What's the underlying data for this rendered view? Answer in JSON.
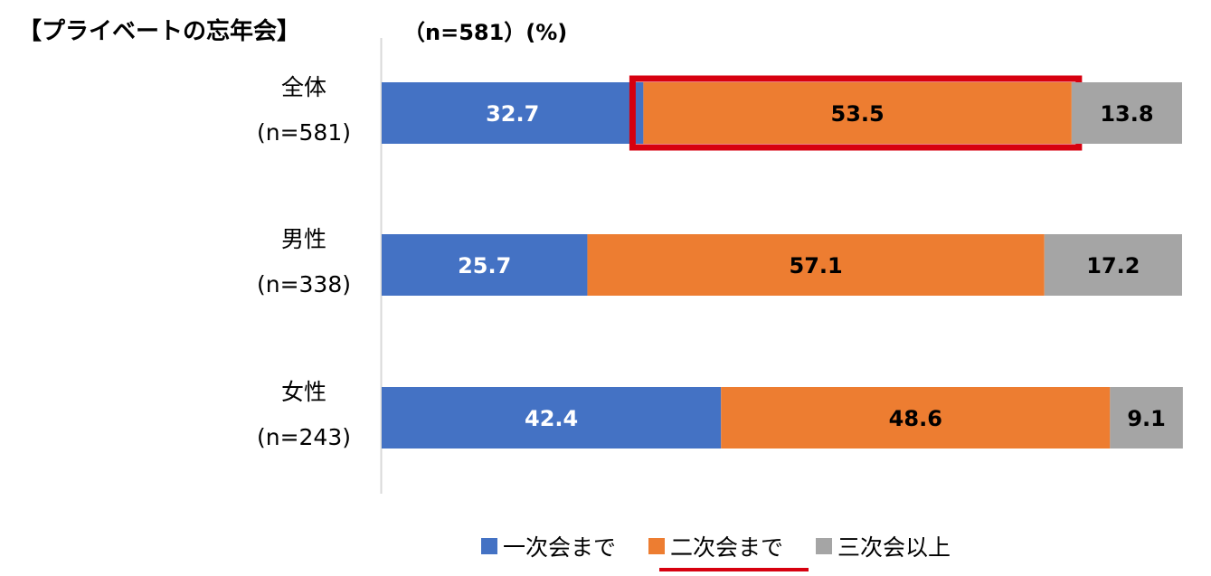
{
  "header": {
    "title": "【プライベートの忘年会】",
    "subtitle": "（n=581）(%)"
  },
  "chart_data": {
    "type": "bar",
    "orientation": "horizontal",
    "stacked": true,
    "categories": [
      {
        "label": "全体",
        "n_label": "(n=581)"
      },
      {
        "label": "男性",
        "n_label": "(n=338)"
      },
      {
        "label": "女性",
        "n_label": "(n=243)"
      }
    ],
    "series": [
      {
        "name": "一次会まで",
        "color": "#4472c4",
        "label_color": "#ffffff",
        "values": [
          32.7,
          25.7,
          42.4
        ]
      },
      {
        "name": "二次会まで",
        "color": "#ed7d31",
        "label_color": "#000000",
        "values": [
          53.5,
          57.1,
          48.6
        ]
      },
      {
        "name": "三次会以上",
        "color": "#a5a5a5",
        "label_color": "#000000",
        "values": [
          13.8,
          17.2,
          9.1
        ]
      }
    ],
    "xlim": [
      0,
      100
    ],
    "grid": false,
    "legend_position": "bottom",
    "highlight": {
      "category_index": 0,
      "series_index": 1,
      "color": "#d7000f"
    },
    "legend_highlight": {
      "series_index": 1,
      "color": "#d7000f"
    }
  }
}
